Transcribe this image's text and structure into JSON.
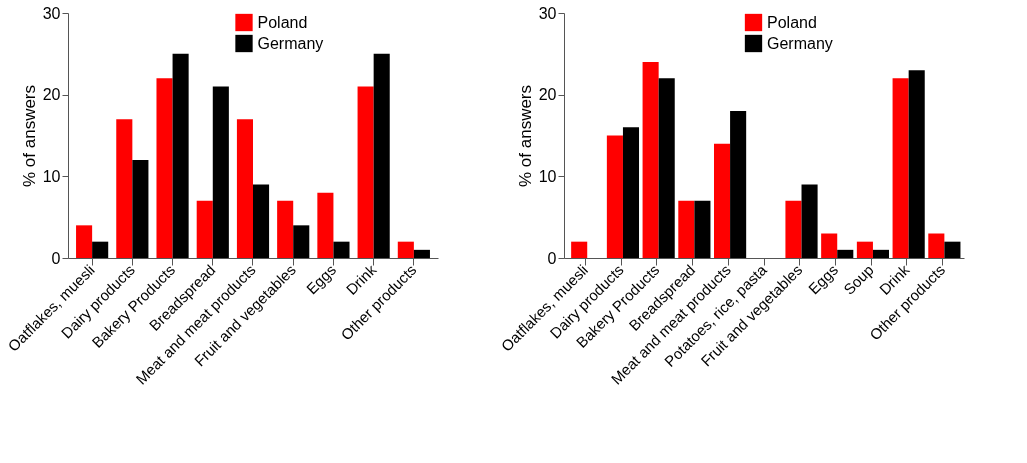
{
  "chart_data": [
    {
      "type": "bar",
      "ylabel": "% of answers",
      "categories": [
        "Oatflakes, muesli",
        "Dairy products",
        "Bakery Products",
        "Breadspread",
        "Meat and meat products",
        "Fruit and vegetables",
        "Eggs",
        "Drink",
        "Other products"
      ],
      "series": [
        {
          "name": "Poland",
          "color": "#ff0000",
          "values": [
            4,
            17,
            22,
            7,
            17,
            7,
            8,
            21,
            2
          ]
        },
        {
          "name": "Germany",
          "color": "#000000",
          "values": [
            2,
            12,
            25,
            21,
            9,
            4,
            2,
            25,
            1
          ]
        }
      ],
      "ylim": [
        0,
        30
      ],
      "yticks": [
        0,
        10,
        20,
        30
      ],
      "grid": false,
      "legend": "top"
    },
    {
      "type": "bar",
      "ylabel": "% of answers",
      "categories": [
        "Oatflakes, muesli",
        "Dairy products",
        "Bakery Products",
        "Breadspread",
        "Meat and meat products",
        "Potatoes, rice, pasta",
        "Fruit and vegetables",
        "Eggs",
        "Soup",
        "Drink",
        "Other products"
      ],
      "series": [
        {
          "name": "Poland",
          "color": "#ff0000",
          "values": [
            2,
            15,
            24,
            7,
            14,
            0,
            7,
            3,
            2,
            22,
            3
          ]
        },
        {
          "name": "Germany",
          "color": "#000000",
          "values": [
            0,
            16,
            22,
            7,
            18,
            0,
            9,
            1,
            1,
            23,
            2
          ]
        }
      ],
      "ylim": [
        0,
        30
      ],
      "yticks": [
        0,
        10,
        20,
        30
      ],
      "grid": false,
      "legend": "top"
    }
  ]
}
